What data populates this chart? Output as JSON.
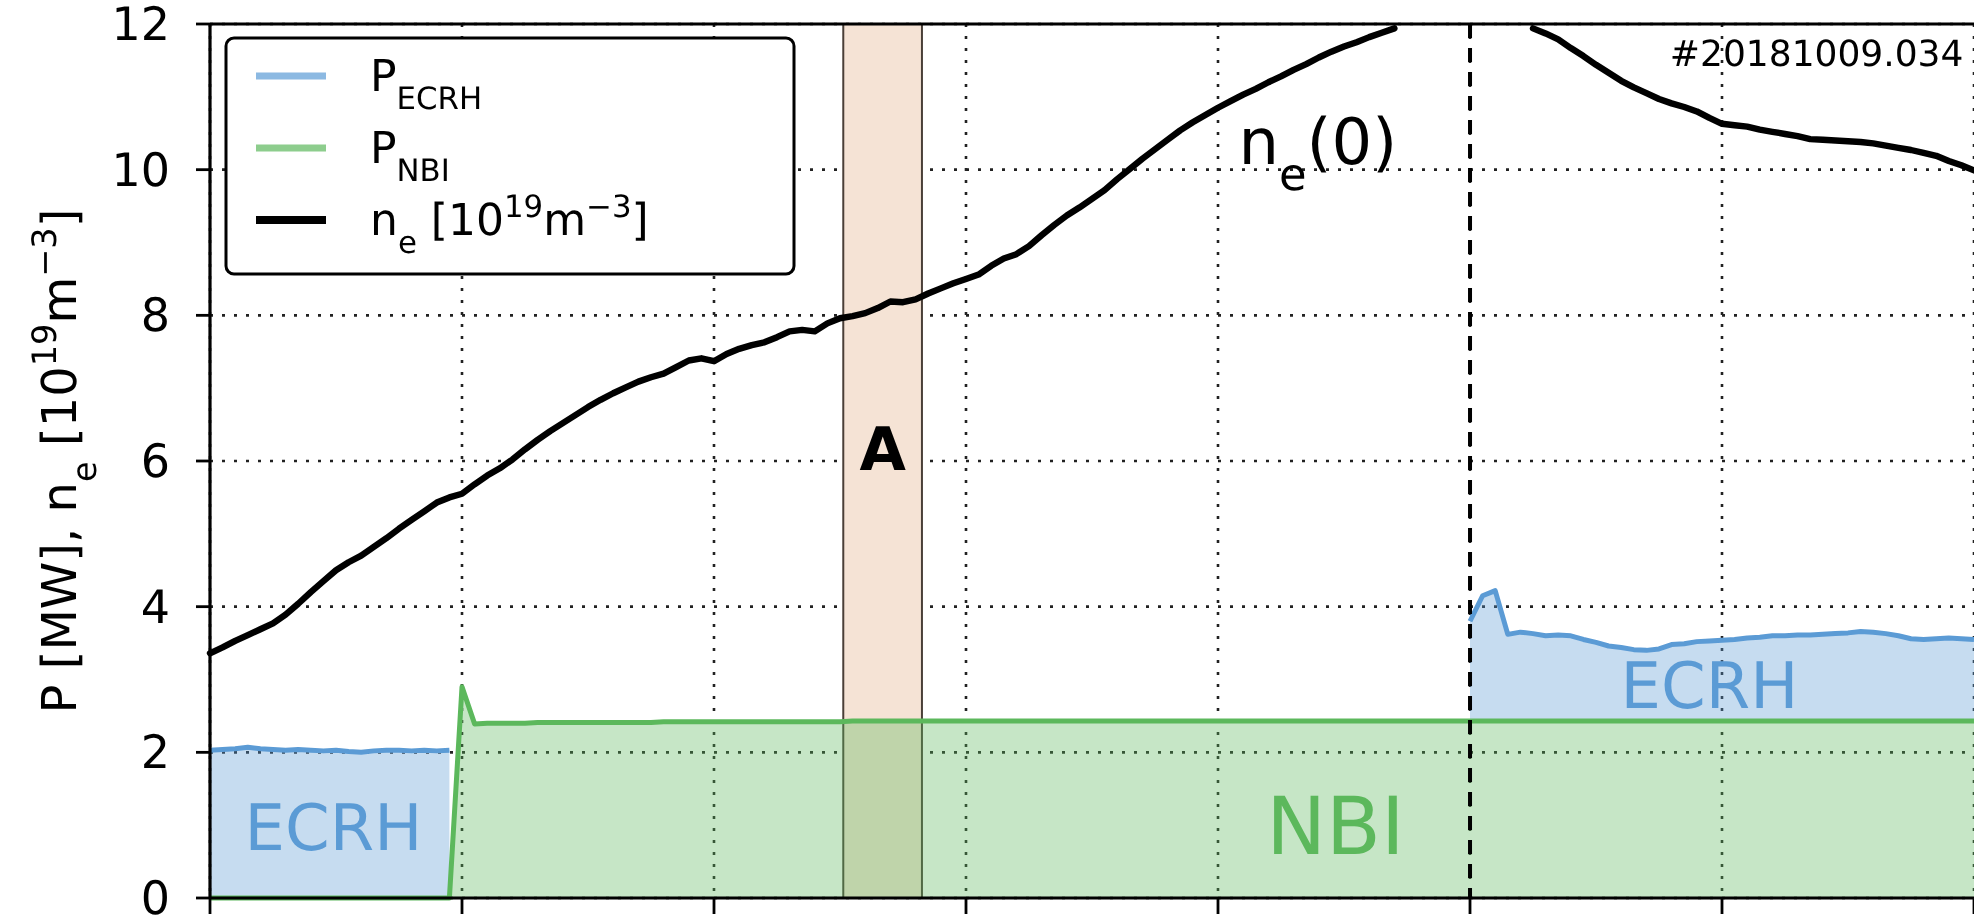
{
  "chart_data": {
    "type": "area",
    "ylabel": "P [MW], n$_{e}$ [10$^{19}$m$^{−3}$]",
    "categories": [
      null,
      null,
      null,
      null,
      null,
      null,
      null,
      null,
      null,
      null,
      null,
      null,
      null,
      null,
      null,
      null,
      null,
      null,
      null,
      null,
      null,
      null,
      null,
      null,
      null,
      null,
      null,
      null,
      null,
      null,
      null,
      null,
      null,
      null,
      null,
      null,
      null,
      null,
      null,
      null,
      null,
      null,
      null,
      null,
      null,
      null,
      null,
      null,
      null,
      null,
      null,
      null,
      null,
      null,
      null,
      null,
      null,
      null,
      null,
      null,
      null,
      null,
      null,
      null,
      null,
      null,
      null,
      null,
      null,
      null,
      null,
      null,
      null,
      null,
      null,
      null,
      null,
      null,
      null,
      null,
      null,
      null,
      null,
      null,
      null,
      null,
      null,
      null,
      null,
      null,
      null,
      null,
      null,
      null,
      null,
      null,
      null,
      null,
      null,
      null,
      null,
      null,
      null,
      null,
      null,
      null,
      null,
      null,
      null,
      null,
      null,
      null,
      null,
      null,
      null,
      null,
      null,
      null,
      null,
      null,
      null,
      null,
      null,
      null,
      null,
      null,
      null,
      null,
      null,
      null,
      null,
      null,
      null,
      null,
      null,
      null,
      null,
      null,
      null,
      null,
      null
    ],
    "series": [
      {
        "name": "P$_{NBI}$",
        "color": "#5cb85c",
        "values": [
          0,
          0,
          0,
          0,
          0,
          0,
          0,
          0,
          0,
          0,
          0,
          0,
          0,
          0,
          0,
          0,
          0,
          0,
          0,
          0,
          2.9,
          2.39,
          2.4,
          2.4,
          2.4,
          2.4,
          2.41,
          2.41,
          2.41,
          2.41,
          2.41,
          2.41,
          2.41,
          2.41,
          2.41,
          2.41,
          2.42,
          2.42,
          2.42,
          2.42,
          2.42,
          2.42,
          2.42,
          2.42,
          2.42,
          2.42,
          2.42,
          2.42,
          2.42,
          2.42,
          2.42,
          2.43,
          2.43,
          2.43,
          2.43,
          2.43,
          2.43,
          2.43,
          2.43,
          2.43,
          2.43,
          2.43,
          2.43,
          2.43,
          2.43,
          2.43,
          2.43,
          2.43,
          2.43,
          2.43,
          2.43,
          2.43,
          2.43,
          2.43,
          2.43,
          2.43,
          2.43,
          2.43,
          2.43,
          2.43,
          2.43,
          2.43,
          2.43,
          2.43,
          2.43,
          2.43,
          2.43,
          2.43,
          2.43,
          2.43,
          2.43,
          2.43,
          2.43,
          2.43,
          2.43,
          2.43,
          2.43,
          2.43,
          2.43,
          2.43,
          2.43,
          2.43,
          2.43,
          2.43,
          2.43,
          2.43,
          2.43,
          2.43,
          2.43,
          2.43,
          2.43,
          2.43,
          2.43,
          2.43,
          2.43,
          2.43,
          2.43,
          2.43,
          2.43,
          2.43,
          2.43,
          2.43,
          2.43,
          2.43,
          2.43,
          2.43,
          2.43,
          2.43,
          2.43,
          2.43,
          2.43,
          2.43,
          2.43,
          2.43,
          2.43,
          2.43,
          2.43,
          2.43,
          2.43,
          2.43,
          2.43
        ]
      },
      {
        "name": "P$_{ECRH}$",
        "color": "#5b9bd5",
        "values": [
          2.03,
          2.04,
          2.05,
          2.07,
          2.05,
          2.04,
          2.03,
          2.04,
          2.03,
          2.02,
          2.03,
          2.01,
          2.0,
          2.02,
          2.03,
          2.03,
          2.02,
          2.03,
          2.02,
          2.03,
          null,
          null,
          null,
          null,
          null,
          null,
          null,
          null,
          null,
          null,
          null,
          null,
          null,
          null,
          null,
          null,
          null,
          null,
          null,
          null,
          null,
          null,
          null,
          null,
          null,
          null,
          null,
          null,
          null,
          null,
          null,
          null,
          null,
          null,
          null,
          null,
          null,
          null,
          null,
          null,
          null,
          null,
          null,
          null,
          null,
          null,
          null,
          null,
          null,
          null,
          null,
          null,
          null,
          null,
          null,
          null,
          null,
          null,
          null,
          null,
          null,
          null,
          null,
          null,
          null,
          null,
          null,
          null,
          null,
          null,
          null,
          null,
          null,
          null,
          null,
          null,
          null,
          null,
          null,
          null,
          1.37,
          1.72,
          1.79,
          1.19,
          1.22,
          1.2,
          1.17,
          1.18,
          1.17,
          1.12,
          1.08,
          1.03,
          1.01,
          0.98,
          0.97,
          0.99,
          1.05,
          1.06,
          1.09,
          1.1,
          1.11,
          1.12,
          1.14,
          1.15,
          1.17,
          1.17,
          1.18,
          1.18,
          1.19,
          1.2,
          1.21,
          1.23,
          1.22,
          1.2,
          1.17,
          1.13,
          1.12,
          1.13,
          1.14,
          1.13,
          1.12
        ]
      },
      {
        "name": "n$_{e}$ [10$^{19}$m$^{−3}$]",
        "type": "line",
        "color": "#000000",
        "values": [
          3.36,
          3.44,
          3.53,
          3.61,
          3.69,
          3.77,
          3.89,
          4.04,
          4.2,
          4.35,
          4.5,
          4.61,
          4.7,
          4.82,
          4.94,
          5.07,
          5.19,
          5.31,
          5.43,
          5.5,
          5.55,
          5.68,
          5.8,
          5.9,
          6.02,
          6.16,
          6.29,
          6.41,
          6.52,
          6.63,
          6.74,
          6.84,
          6.93,
          7.01,
          7.09,
          7.15,
          7.2,
          7.29,
          7.38,
          7.41,
          7.37,
          7.47,
          7.54,
          7.59,
          7.63,
          7.7,
          7.78,
          7.8,
          7.78,
          7.89,
          7.96,
          7.99,
          8.03,
          8.1,
          8.19,
          8.18,
          8.22,
          8.3,
          8.37,
          8.44,
          8.5,
          8.56,
          8.68,
          8.78,
          8.84,
          8.95,
          9.1,
          9.24,
          9.37,
          9.48,
          9.6,
          9.72,
          9.87,
          10.01,
          10.15,
          10.28,
          10.41,
          10.54,
          10.65,
          10.75,
          10.85,
          10.94,
          11.03,
          11.11,
          11.2,
          11.28,
          11.37,
          11.45,
          11.54,
          11.62,
          11.69,
          11.75,
          11.82,
          11.88,
          11.94,
          null,
          null,
          null,
          null,
          null,
          null,
          null,
          null,
          null,
          null,
          11.94,
          11.87,
          11.79,
          11.67,
          11.56,
          11.44,
          11.33,
          11.22,
          11.13,
          11.05,
          10.97,
          10.91,
          10.86,
          10.8,
          10.71,
          10.63,
          10.61,
          10.59,
          10.55,
          10.52,
          10.49,
          10.46,
          10.42,
          10.41,
          10.4,
          10.39,
          10.38,
          10.36,
          10.33,
          10.3,
          10.27,
          10.23,
          10.19,
          10.12,
          10.06,
          9.99
        ]
      }
    ],
    "stacked": true,
    "ylim": [
      0,
      12
    ],
    "yticks": [
      0,
      2,
      4,
      6,
      8,
      10,
      12
    ],
    "grid": true,
    "legend": "top left",
    "tick_labels": "y",
    "annotations": [
      "#20181009.034",
      "n$_{e}$(0)",
      "ECRH",
      "NBI",
      "ECRH",
      "A"
    ]
  }
}
